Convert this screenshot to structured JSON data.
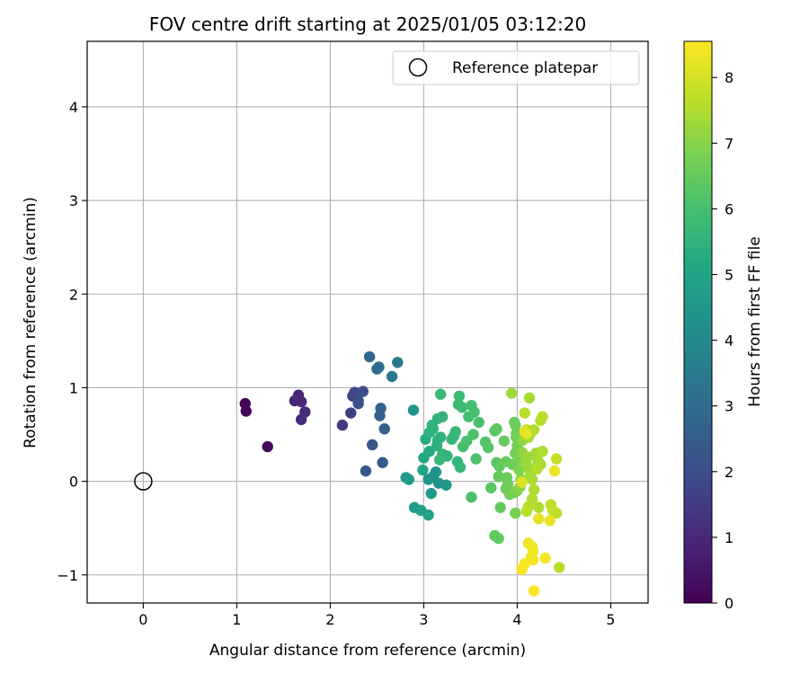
{
  "chart_data": {
    "type": "scatter",
    "title": "FOV centre drift starting at 2025/01/05 03:12:20",
    "xlabel": "Angular distance from reference (arcmin)",
    "ylabel": "Rotation from reference (arcmin)",
    "xlim": [
      -0.6,
      5.4
    ],
    "ylim": [
      -1.3,
      4.7
    ],
    "xticks": [
      0,
      1,
      2,
      3,
      4,
      5
    ],
    "yticks": [
      -1,
      0,
      1,
      2,
      3,
      4
    ],
    "xtick_labels": [
      "0",
      "1",
      "2",
      "3",
      "4",
      "5"
    ],
    "ytick_labels": [
      "−1",
      "0",
      "1",
      "2",
      "3",
      "4"
    ],
    "grid": true,
    "legend": {
      "placement": "top-right",
      "entries": [
        "Reference platepar"
      ]
    },
    "reference_point": {
      "x": 0,
      "y": 0,
      "label": "Reference platepar"
    },
    "colorbar": {
      "label": "Hours from first FF file",
      "colormap": "viridis",
      "range": [
        0,
        8.55
      ],
      "ticks": [
        0,
        1,
        2,
        3,
        4,
        5,
        6,
        7,
        8
      ],
      "tick_labels": [
        "0",
        "1",
        "2",
        "3",
        "4",
        "5",
        "6",
        "7",
        "8"
      ]
    },
    "points": [
      {
        "x": 1.09,
        "y": 0.83,
        "hours": 0.05
      },
      {
        "x": 1.1,
        "y": 0.75,
        "hours": 0.1
      },
      {
        "x": 1.33,
        "y": 0.37,
        "hours": 0.15
      },
      {
        "x": 1.62,
        "y": 0.86,
        "hours": 0.9
      },
      {
        "x": 1.66,
        "y": 0.92,
        "hours": 0.95
      },
      {
        "x": 1.69,
        "y": 0.85,
        "hours": 1.0
      },
      {
        "x": 1.73,
        "y": 0.74,
        "hours": 1.05
      },
      {
        "x": 1.69,
        "y": 0.66,
        "hours": 1.1
      },
      {
        "x": 2.13,
        "y": 0.6,
        "hours": 1.4
      },
      {
        "x": 2.22,
        "y": 0.73,
        "hours": 1.55
      },
      {
        "x": 2.24,
        "y": 0.91,
        "hours": 1.75
      },
      {
        "x": 2.26,
        "y": 0.95,
        "hours": 1.8
      },
      {
        "x": 2.3,
        "y": 0.86,
        "hours": 1.9
      },
      {
        "x": 2.35,
        "y": 0.96,
        "hours": 2.0
      },
      {
        "x": 2.3,
        "y": 0.83,
        "hours": 2.05
      },
      {
        "x": 2.45,
        "y": 0.39,
        "hours": 2.2
      },
      {
        "x": 2.38,
        "y": 0.11,
        "hours": 2.3
      },
      {
        "x": 2.56,
        "y": 0.2,
        "hours": 2.4
      },
      {
        "x": 2.58,
        "y": 0.56,
        "hours": 2.55
      },
      {
        "x": 2.53,
        "y": 0.7,
        "hours": 2.65
      },
      {
        "x": 2.54,
        "y": 0.78,
        "hours": 2.7
      },
      {
        "x": 2.42,
        "y": 1.33,
        "hours": 2.85
      },
      {
        "x": 2.5,
        "y": 1.2,
        "hours": 3.0
      },
      {
        "x": 2.52,
        "y": 1.22,
        "hours": 3.05
      },
      {
        "x": 2.66,
        "y": 1.12,
        "hours": 3.45
      },
      {
        "x": 2.72,
        "y": 1.27,
        "hours": 3.4
      },
      {
        "x": 2.89,
        "y": 0.76,
        "hours": 4.4
      },
      {
        "x": 2.81,
        "y": 0.04,
        "hours": 4.55
      },
      {
        "x": 2.84,
        "y": 0.02,
        "hours": 4.6
      },
      {
        "x": 2.9,
        "y": -0.28,
        "hours": 4.7
      },
      {
        "x": 2.97,
        "y": -0.31,
        "hours": 4.8
      },
      {
        "x": 3.05,
        "y": -0.36,
        "hours": 4.9
      },
      {
        "x": 3.08,
        "y": -0.13,
        "hours": 4.6
      },
      {
        "x": 3.1,
        "y": 0.05,
        "hours": 4.5
      },
      {
        "x": 3.13,
        "y": 0.1,
        "hours": 4.4
      },
      {
        "x": 3.05,
        "y": 0.02,
        "hours": 4.5
      },
      {
        "x": 3.16,
        "y": -0.02,
        "hours": 4.3
      },
      {
        "x": 3.24,
        "y": -0.04,
        "hours": 4.5
      },
      {
        "x": 2.99,
        "y": 0.12,
        "hours": 5.0
      },
      {
        "x": 3.0,
        "y": 0.25,
        "hours": 5.1
      },
      {
        "x": 3.06,
        "y": 0.32,
        "hours": 5.2
      },
      {
        "x": 3.02,
        "y": 0.45,
        "hours": 5.3
      },
      {
        "x": 3.06,
        "y": 0.52,
        "hours": 5.4
      },
      {
        "x": 3.09,
        "y": 0.6,
        "hours": 5.5
      },
      {
        "x": 3.1,
        "y": 0.56,
        "hours": 5.45
      },
      {
        "x": 3.15,
        "y": 0.67,
        "hours": 5.5
      },
      {
        "x": 3.2,
        "y": 0.69,
        "hours": 5.55
      },
      {
        "x": 3.15,
        "y": 0.44,
        "hours": 5.4
      },
      {
        "x": 3.14,
        "y": 0.38,
        "hours": 5.45
      },
      {
        "x": 3.18,
        "y": 0.47,
        "hours": 5.5
      },
      {
        "x": 3.2,
        "y": 0.29,
        "hours": 5.6
      },
      {
        "x": 3.25,
        "y": 0.27,
        "hours": 5.55
      },
      {
        "x": 3.17,
        "y": 0.23,
        "hours": 5.65
      },
      {
        "x": 3.3,
        "y": 0.45,
        "hours": 5.6
      },
      {
        "x": 3.32,
        "y": 0.48,
        "hours": 5.65
      },
      {
        "x": 3.34,
        "y": 0.53,
        "hours": 5.7
      },
      {
        "x": 3.36,
        "y": 0.21,
        "hours": 5.6
      },
      {
        "x": 3.39,
        "y": 0.15,
        "hours": 5.65
      },
      {
        "x": 3.18,
        "y": 0.93,
        "hours": 5.7
      },
      {
        "x": 3.38,
        "y": 0.91,
        "hours": 5.75
      },
      {
        "x": 3.37,
        "y": 0.82,
        "hours": 5.8
      },
      {
        "x": 3.41,
        "y": 0.79,
        "hours": 5.85
      },
      {
        "x": 3.48,
        "y": 0.69,
        "hours": 5.9
      },
      {
        "x": 3.51,
        "y": 0.81,
        "hours": 5.95
      },
      {
        "x": 3.54,
        "y": 0.74,
        "hours": 6.0
      },
      {
        "x": 3.59,
        "y": 0.63,
        "hours": 6.05
      },
      {
        "x": 3.42,
        "y": 0.37,
        "hours": 6.0
      },
      {
        "x": 3.46,
        "y": 0.43,
        "hours": 6.05
      },
      {
        "x": 3.53,
        "y": 0.5,
        "hours": 6.1
      },
      {
        "x": 3.51,
        "y": -0.17,
        "hours": 6.1
      },
      {
        "x": 3.56,
        "y": 0.24,
        "hours": 6.15
      },
      {
        "x": 3.66,
        "y": 0.42,
        "hours": 6.2
      },
      {
        "x": 3.69,
        "y": 0.36,
        "hours": 6.25
      },
      {
        "x": 3.72,
        "y": -0.07,
        "hours": 6.3
      },
      {
        "x": 3.76,
        "y": 0.54,
        "hours": 6.3
      },
      {
        "x": 3.78,
        "y": 0.56,
        "hours": 6.35
      },
      {
        "x": 3.76,
        "y": -0.58,
        "hours": 6.4
      },
      {
        "x": 3.8,
        "y": -0.61,
        "hours": 6.45
      },
      {
        "x": 3.78,
        "y": 0.2,
        "hours": 6.35
      },
      {
        "x": 3.81,
        "y": 0.16,
        "hours": 6.4
      },
      {
        "x": 3.8,
        "y": 0.05,
        "hours": 6.45
      },
      {
        "x": 3.82,
        "y": -0.28,
        "hours": 6.5
      },
      {
        "x": 3.86,
        "y": 0.43,
        "hours": 6.5
      },
      {
        "x": 3.88,
        "y": 0.21,
        "hours": 6.55
      },
      {
        "x": 3.89,
        "y": 0.04,
        "hours": 6.6
      },
      {
        "x": 3.9,
        "y": -0.03,
        "hours": 6.65
      },
      {
        "x": 3.92,
        "y": -0.14,
        "hours": 6.7
      },
      {
        "x": 3.88,
        "y": -0.08,
        "hours": 6.65
      },
      {
        "x": 3.95,
        "y": 0.18,
        "hours": 6.6
      },
      {
        "x": 3.97,
        "y": 0.63,
        "hours": 6.55
      },
      {
        "x": 3.98,
        "y": 0.6,
        "hours": 6.6
      },
      {
        "x": 3.99,
        "y": 0.51,
        "hours": 6.65
      },
      {
        "x": 3.99,
        "y": 0.47,
        "hours": 6.7
      },
      {
        "x": 4.0,
        "y": 0.38,
        "hours": 6.75
      },
      {
        "x": 3.98,
        "y": 0.3,
        "hours": 6.7
      },
      {
        "x": 4.01,
        "y": 0.24,
        "hours": 6.8
      },
      {
        "x": 3.97,
        "y": -0.12,
        "hours": 6.75
      },
      {
        "x": 4.0,
        "y": -0.1,
        "hours": 6.85
      },
      {
        "x": 3.98,
        "y": -0.34,
        "hours": 6.8
      },
      {
        "x": 4.02,
        "y": 0.12,
        "hours": 6.9
      },
      {
        "x": 4.04,
        "y": 0.02,
        "hours": 7.0
      },
      {
        "x": 4.03,
        "y": -0.06,
        "hours": 7.05
      },
      {
        "x": 4.05,
        "y": 0.31,
        "hours": 7.1
      },
      {
        "x": 4.06,
        "y": 0.44,
        "hours": 7.15
      },
      {
        "x": 3.94,
        "y": 0.94,
        "hours": 7.3
      },
      {
        "x": 4.13,
        "y": 0.89,
        "hours": 7.4
      },
      {
        "x": 4.08,
        "y": 0.73,
        "hours": 7.6
      },
      {
        "x": 4.1,
        "y": 0.55,
        "hours": 7.7
      },
      {
        "x": 4.14,
        "y": 0.51,
        "hours": 7.5
      },
      {
        "x": 4.18,
        "y": 0.55,
        "hours": 7.6
      },
      {
        "x": 4.12,
        "y": 0.47,
        "hours": 7.4
      },
      {
        "x": 4.09,
        "y": 0.21,
        "hours": 7.2
      },
      {
        "x": 4.12,
        "y": 0.15,
        "hours": 7.3
      },
      {
        "x": 4.14,
        "y": 0.08,
        "hours": 7.4
      },
      {
        "x": 4.16,
        "y": 0.02,
        "hours": 7.45
      },
      {
        "x": 4.18,
        "y": -0.09,
        "hours": 7.5
      },
      {
        "x": 4.11,
        "y": 0.26,
        "hours": 7.25
      },
      {
        "x": 4.2,
        "y": 0.3,
        "hours": 7.35
      },
      {
        "x": 4.22,
        "y": 0.22,
        "hours": 7.4
      },
      {
        "x": 4.25,
        "y": 0.18,
        "hours": 7.45
      },
      {
        "x": 4.27,
        "y": 0.32,
        "hours": 7.5
      },
      {
        "x": 4.21,
        "y": 0.13,
        "hours": 7.55
      },
      {
        "x": 4.25,
        "y": 0.65,
        "hours": 7.6
      },
      {
        "x": 4.27,
        "y": 0.69,
        "hours": 7.65
      },
      {
        "x": 4.23,
        "y": -0.28,
        "hours": 7.5
      },
      {
        "x": 4.16,
        "y": -0.19,
        "hours": 7.55
      },
      {
        "x": 4.12,
        "y": -0.27,
        "hours": 7.6
      },
      {
        "x": 4.1,
        "y": -0.32,
        "hours": 7.65
      },
      {
        "x": 4.36,
        "y": -0.25,
        "hours": 7.7
      },
      {
        "x": 4.38,
        "y": -0.31,
        "hours": 7.75
      },
      {
        "x": 4.42,
        "y": -0.34,
        "hours": 7.7
      },
      {
        "x": 4.42,
        "y": 0.24,
        "hours": 7.8
      },
      {
        "x": 4.45,
        "y": -0.92,
        "hours": 7.6
      },
      {
        "x": 4.05,
        "y": -0.01,
        "hours": 8.1
      },
      {
        "x": 4.08,
        "y": 0.53,
        "hours": 8.15
      },
      {
        "x": 4.1,
        "y": 0.51,
        "hours": 8.2
      },
      {
        "x": 4.23,
        "y": -0.4,
        "hours": 8.2
      },
      {
        "x": 4.35,
        "y": -0.42,
        "hours": 8.25
      },
      {
        "x": 4.4,
        "y": 0.11,
        "hours": 8.3
      },
      {
        "x": 4.12,
        "y": -0.66,
        "hours": 8.3
      },
      {
        "x": 4.16,
        "y": -0.7,
        "hours": 8.35
      },
      {
        "x": 4.17,
        "y": -0.75,
        "hours": 8.4
      },
      {
        "x": 4.15,
        "y": -0.81,
        "hours": 8.35
      },
      {
        "x": 4.17,
        "y": -0.84,
        "hours": 8.4
      },
      {
        "x": 4.3,
        "y": -0.82,
        "hours": 8.45
      },
      {
        "x": 4.08,
        "y": -0.88,
        "hours": 8.45
      },
      {
        "x": 4.05,
        "y": -0.94,
        "hours": 8.5
      },
      {
        "x": 4.18,
        "y": -1.17,
        "hours": 8.5
      }
    ]
  }
}
